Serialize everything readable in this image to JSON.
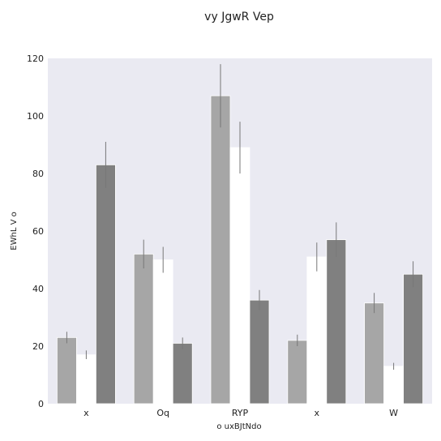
{
  "chart_data": {
    "type": "bar",
    "title": "vy JgwR Vep",
    "xlabel": "o uxBJtNdo",
    "ylabel": "EWhL V o",
    "categories": [
      "x",
      "Oq",
      "RYP",
      "x",
      "W"
    ],
    "ylim": [
      0,
      120
    ],
    "yticks": [
      0,
      20,
      40,
      60,
      80,
      100,
      120
    ],
    "grid": false,
    "legend": "none",
    "series": [
      {
        "color": "#a6a6a6",
        "values": [
          23,
          52,
          107,
          22,
          35
        ],
        "errors": [
          2,
          5,
          11,
          2,
          3.5
        ]
      },
      {
        "color": "#ffffff",
        "values": [
          17,
          50,
          89,
          51,
          13
        ],
        "errors": [
          1.5,
          4.5,
          9,
          5,
          1.2
        ]
      },
      {
        "color": "#808080",
        "values": [
          83,
          21,
          36,
          57,
          45
        ],
        "errors": [
          8,
          2,
          3.5,
          6,
          4.5
        ]
      }
    ],
    "colors": {
      "background": "#eaeaf2",
      "error_bar": "#777777"
    }
  }
}
